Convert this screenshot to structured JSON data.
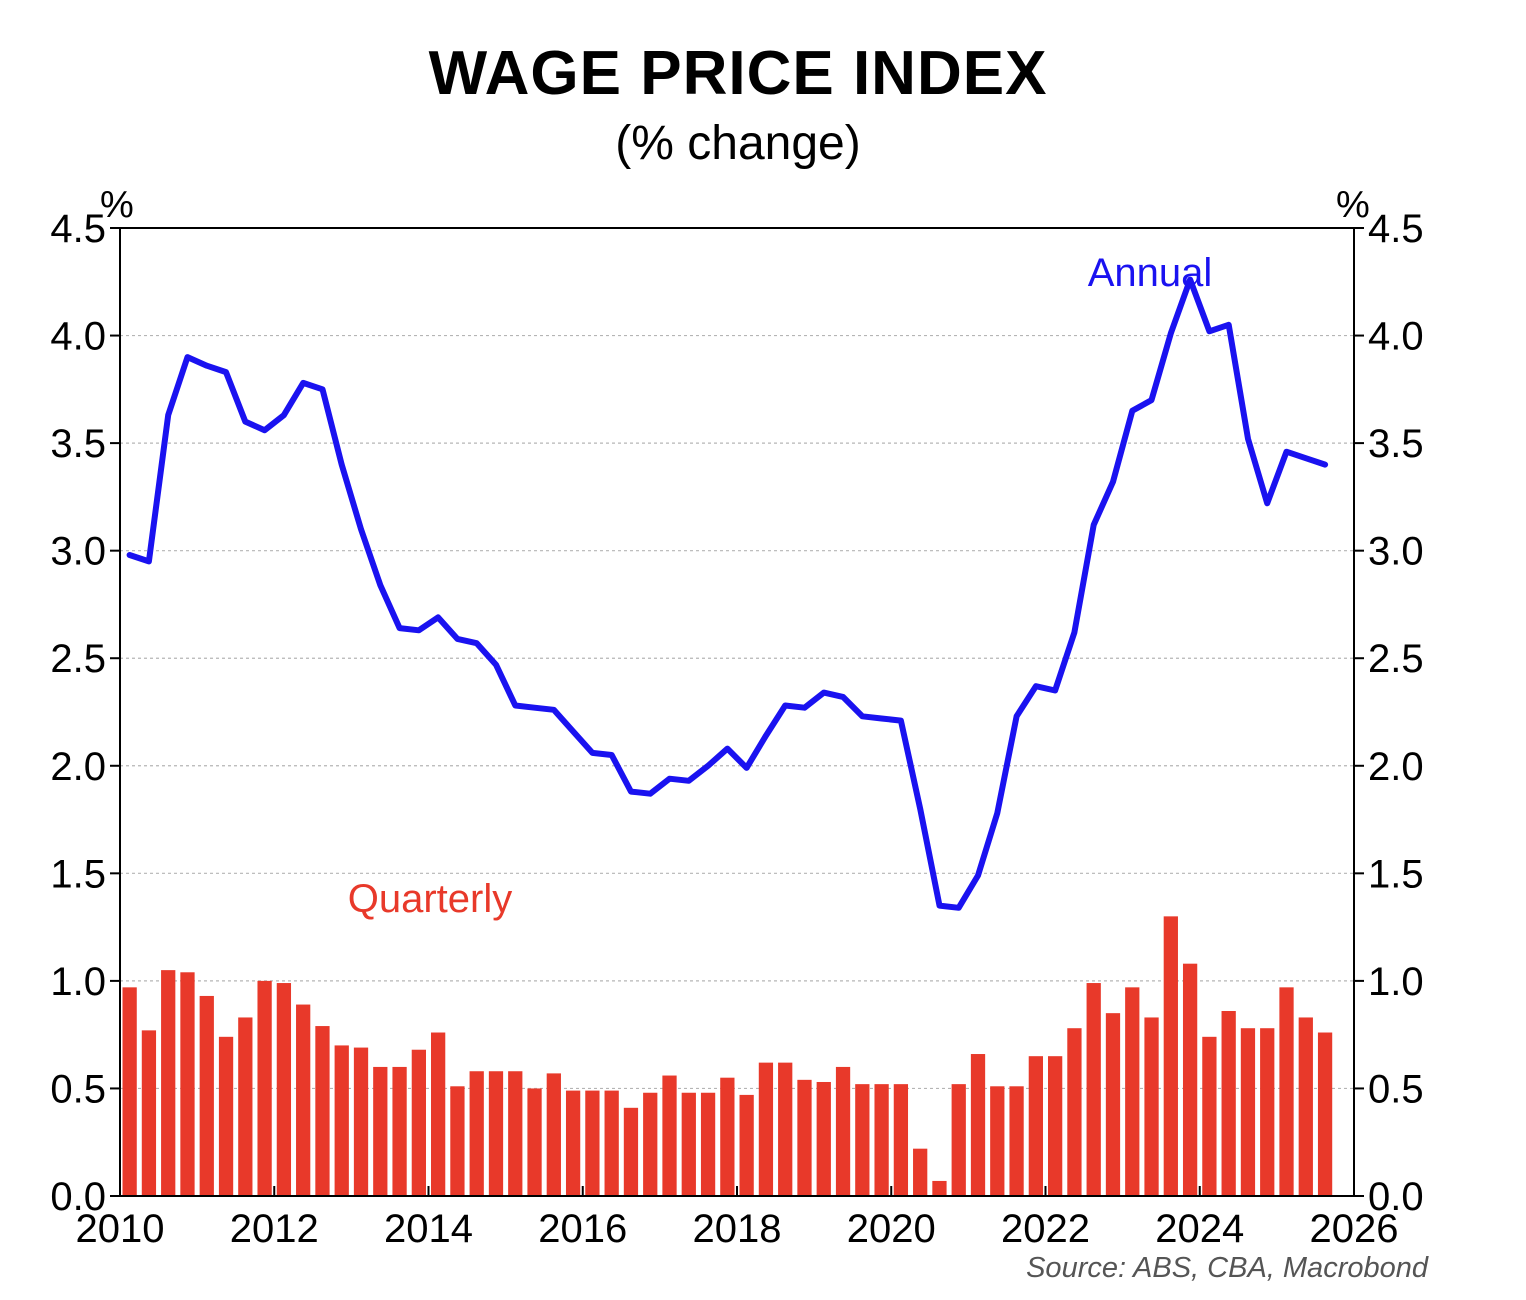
{
  "chart_data": {
    "type": "bar+line",
    "title": "WAGE PRICE INDEX",
    "subtitle": "(% change)",
    "yunit_left": "%",
    "yunit_right": "%",
    "source": "Source: ABS, CBA, Macrobond",
    "xlim": [
      2010,
      2026
    ],
    "ylim": [
      0,
      4.5
    ],
    "y_ticks": [
      "0.0",
      "0.5",
      "1.0",
      "1.5",
      "2.0",
      "2.5",
      "3.0",
      "3.5",
      "4.0",
      "4.5"
    ],
    "x_ticks": [
      "2010",
      "2012",
      "2014",
      "2016",
      "2018",
      "2020",
      "2022",
      "2024",
      "2026"
    ],
    "grid": true,
    "series": [
      {
        "name": "Quarterly",
        "type": "bar",
        "color": "#e8392a",
        "x": [
          2010.0,
          2010.25,
          2010.5,
          2010.75,
          2011.0,
          2011.25,
          2011.5,
          2011.75,
          2012.0,
          2012.25,
          2012.5,
          2012.75,
          2013.0,
          2013.25,
          2013.5,
          2013.75,
          2014.0,
          2014.25,
          2014.5,
          2014.75,
          2015.0,
          2015.25,
          2015.5,
          2015.75,
          2016.0,
          2016.25,
          2016.5,
          2016.75,
          2017.0,
          2017.25,
          2017.5,
          2017.75,
          2018.0,
          2018.25,
          2018.5,
          2018.75,
          2019.0,
          2019.25,
          2019.5,
          2019.75,
          2020.0,
          2020.25,
          2020.5,
          2020.75,
          2021.0,
          2021.25,
          2021.5,
          2021.75,
          2022.0,
          2022.25,
          2022.5,
          2022.75,
          2023.0,
          2023.25,
          2023.5,
          2023.75,
          2024.0,
          2024.25,
          2024.5,
          2024.75,
          2025.0,
          2025.25,
          2025.5
        ],
        "values": [
          0.97,
          0.77,
          1.05,
          1.04,
          0.93,
          0.74,
          0.83,
          1.0,
          0.99,
          0.89,
          0.79,
          0.7,
          0.69,
          0.6,
          0.6,
          0.68,
          0.76,
          0.51,
          0.58,
          0.58,
          0.58,
          0.5,
          0.57,
          0.49,
          0.49,
          0.49,
          0.41,
          0.48,
          0.56,
          0.48,
          0.48,
          0.55,
          0.47,
          0.62,
          0.62,
          0.54,
          0.53,
          0.6,
          0.52,
          0.52,
          0.52,
          0.22,
          0.07,
          0.52,
          0.66,
          0.51,
          0.51,
          0.65,
          0.65,
          0.78,
          0.99,
          0.85,
          0.97,
          0.83,
          1.3,
          1.08,
          0.74,
          0.86,
          0.78,
          0.78,
          0.97,
          0.83,
          0.76
        ]
      },
      {
        "name": "Annual",
        "type": "line",
        "color": "#1a12f0",
        "x": [
          2010.0,
          2010.25,
          2010.5,
          2010.75,
          2011.0,
          2011.25,
          2011.5,
          2011.75,
          2012.0,
          2012.25,
          2012.5,
          2012.75,
          2013.0,
          2013.25,
          2013.5,
          2013.75,
          2014.0,
          2014.25,
          2014.5,
          2014.75,
          2015.0,
          2015.25,
          2015.5,
          2015.75,
          2016.0,
          2016.25,
          2016.5,
          2016.75,
          2017.0,
          2017.25,
          2017.5,
          2017.75,
          2018.0,
          2018.25,
          2018.5,
          2018.75,
          2019.0,
          2019.25,
          2019.5,
          2019.75,
          2020.0,
          2020.25,
          2020.5,
          2020.75,
          2021.0,
          2021.25,
          2021.5,
          2021.75,
          2022.0,
          2022.25,
          2022.5,
          2022.75,
          2023.0,
          2023.25,
          2023.5,
          2023.75,
          2024.0,
          2024.25,
          2024.5,
          2024.75,
          2025.0,
          2025.25,
          2025.5
        ],
        "values": [
          2.98,
          2.95,
          3.63,
          3.9,
          3.86,
          3.83,
          3.6,
          3.56,
          3.63,
          3.78,
          3.75,
          3.4,
          3.1,
          2.84,
          2.64,
          2.63,
          2.69,
          2.59,
          2.57,
          2.47,
          2.28,
          2.27,
          2.26,
          2.16,
          2.06,
          2.05,
          1.88,
          1.87,
          1.94,
          1.93,
          2.0,
          2.08,
          1.99,
          2.14,
          2.28,
          2.27,
          2.34,
          2.32,
          2.23,
          2.22,
          2.21,
          1.8,
          1.35,
          1.34,
          1.49,
          1.78,
          2.23,
          2.37,
          2.35,
          2.62,
          3.12,
          3.32,
          3.65,
          3.7,
          4.01,
          4.26,
          4.02,
          4.05,
          3.52,
          3.22,
          3.46,
          3.43,
          3.4
        ]
      }
    ],
    "annotations": [
      "Annual",
      "Quarterly"
    ]
  }
}
